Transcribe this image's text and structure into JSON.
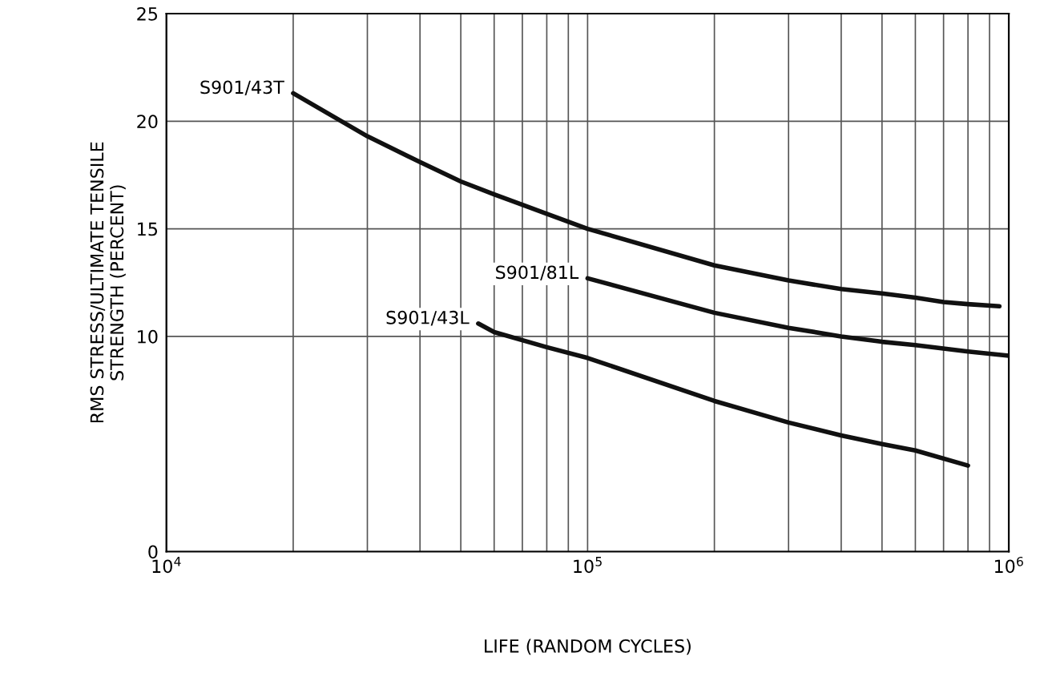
{
  "chart_data": {
    "type": "line",
    "xlabel": "LIFE (RANDOM CYCLES)",
    "ylabel": "RMS STRESS/ULTIMATE TENSILE\nSTRENGTH (PERCENT)",
    "log": "x",
    "grid": true,
    "legend": false,
    "marker": "none",
    "line_style": "solid",
    "xlim": [
      10000,
      1000000
    ],
    "ylim": [
      0,
      25
    ],
    "xticks": [
      {
        "value": 10000,
        "label": "10$^{4}$"
      },
      {
        "value": 20000,
        "label": null
      },
      {
        "value": 30000,
        "label": null
      },
      {
        "value": 40000,
        "label": null
      },
      {
        "value": 50000,
        "label": null
      },
      {
        "value": 60000,
        "label": null
      },
      {
        "value": 70000,
        "label": null
      },
      {
        "value": 80000,
        "label": null
      },
      {
        "value": 90000,
        "label": null
      },
      {
        "value": 100000,
        "label": "10$^{5}$"
      },
      {
        "value": 200000,
        "label": null
      },
      {
        "value": 300000,
        "label": null
      },
      {
        "value": 400000,
        "label": null
      },
      {
        "value": 500000,
        "label": null
      },
      {
        "value": 600000,
        "label": null
      },
      {
        "value": 700000,
        "label": null
      },
      {
        "value": 800000,
        "label": null
      },
      {
        "value": 900000,
        "label": null
      },
      {
        "value": 1000000,
        "label": "10$^{6}$"
      }
    ],
    "yticks": [
      0,
      10,
      15,
      20,
      25
    ],
    "series": [
      {
        "name": "S901/43T",
        "color": "#111111",
        "x": [
          20000,
          30000,
          40000,
          50000,
          60000,
          80000,
          100000,
          200000,
          300000,
          400000,
          500000,
          600000,
          700000,
          800000,
          950000
        ],
        "values": [
          21.3,
          19.3,
          18.1,
          17.2,
          16.6,
          15.7,
          15.0,
          13.3,
          12.6,
          12.2,
          12.0,
          11.8,
          11.6,
          11.5,
          11.4
        ]
      },
      {
        "name": "S901/81L",
        "color": "#111111",
        "x": [
          100000,
          200000,
          300000,
          400000,
          500000,
          600000,
          800000,
          1000000
        ],
        "values": [
          12.7,
          11.1,
          10.4,
          10.0,
          9.75,
          9.6,
          9.3,
          9.1
        ]
      },
      {
        "name": "S901/43L",
        "color": "#111111",
        "x": [
          55000,
          60000,
          80000,
          100000,
          200000,
          300000,
          400000,
          500000,
          600000,
          800000
        ],
        "values": [
          10.6,
          10.2,
          9.5,
          9.0,
          7.0,
          6.0,
          5.4,
          5.0,
          4.7,
          4.0
        ]
      }
    ]
  }
}
